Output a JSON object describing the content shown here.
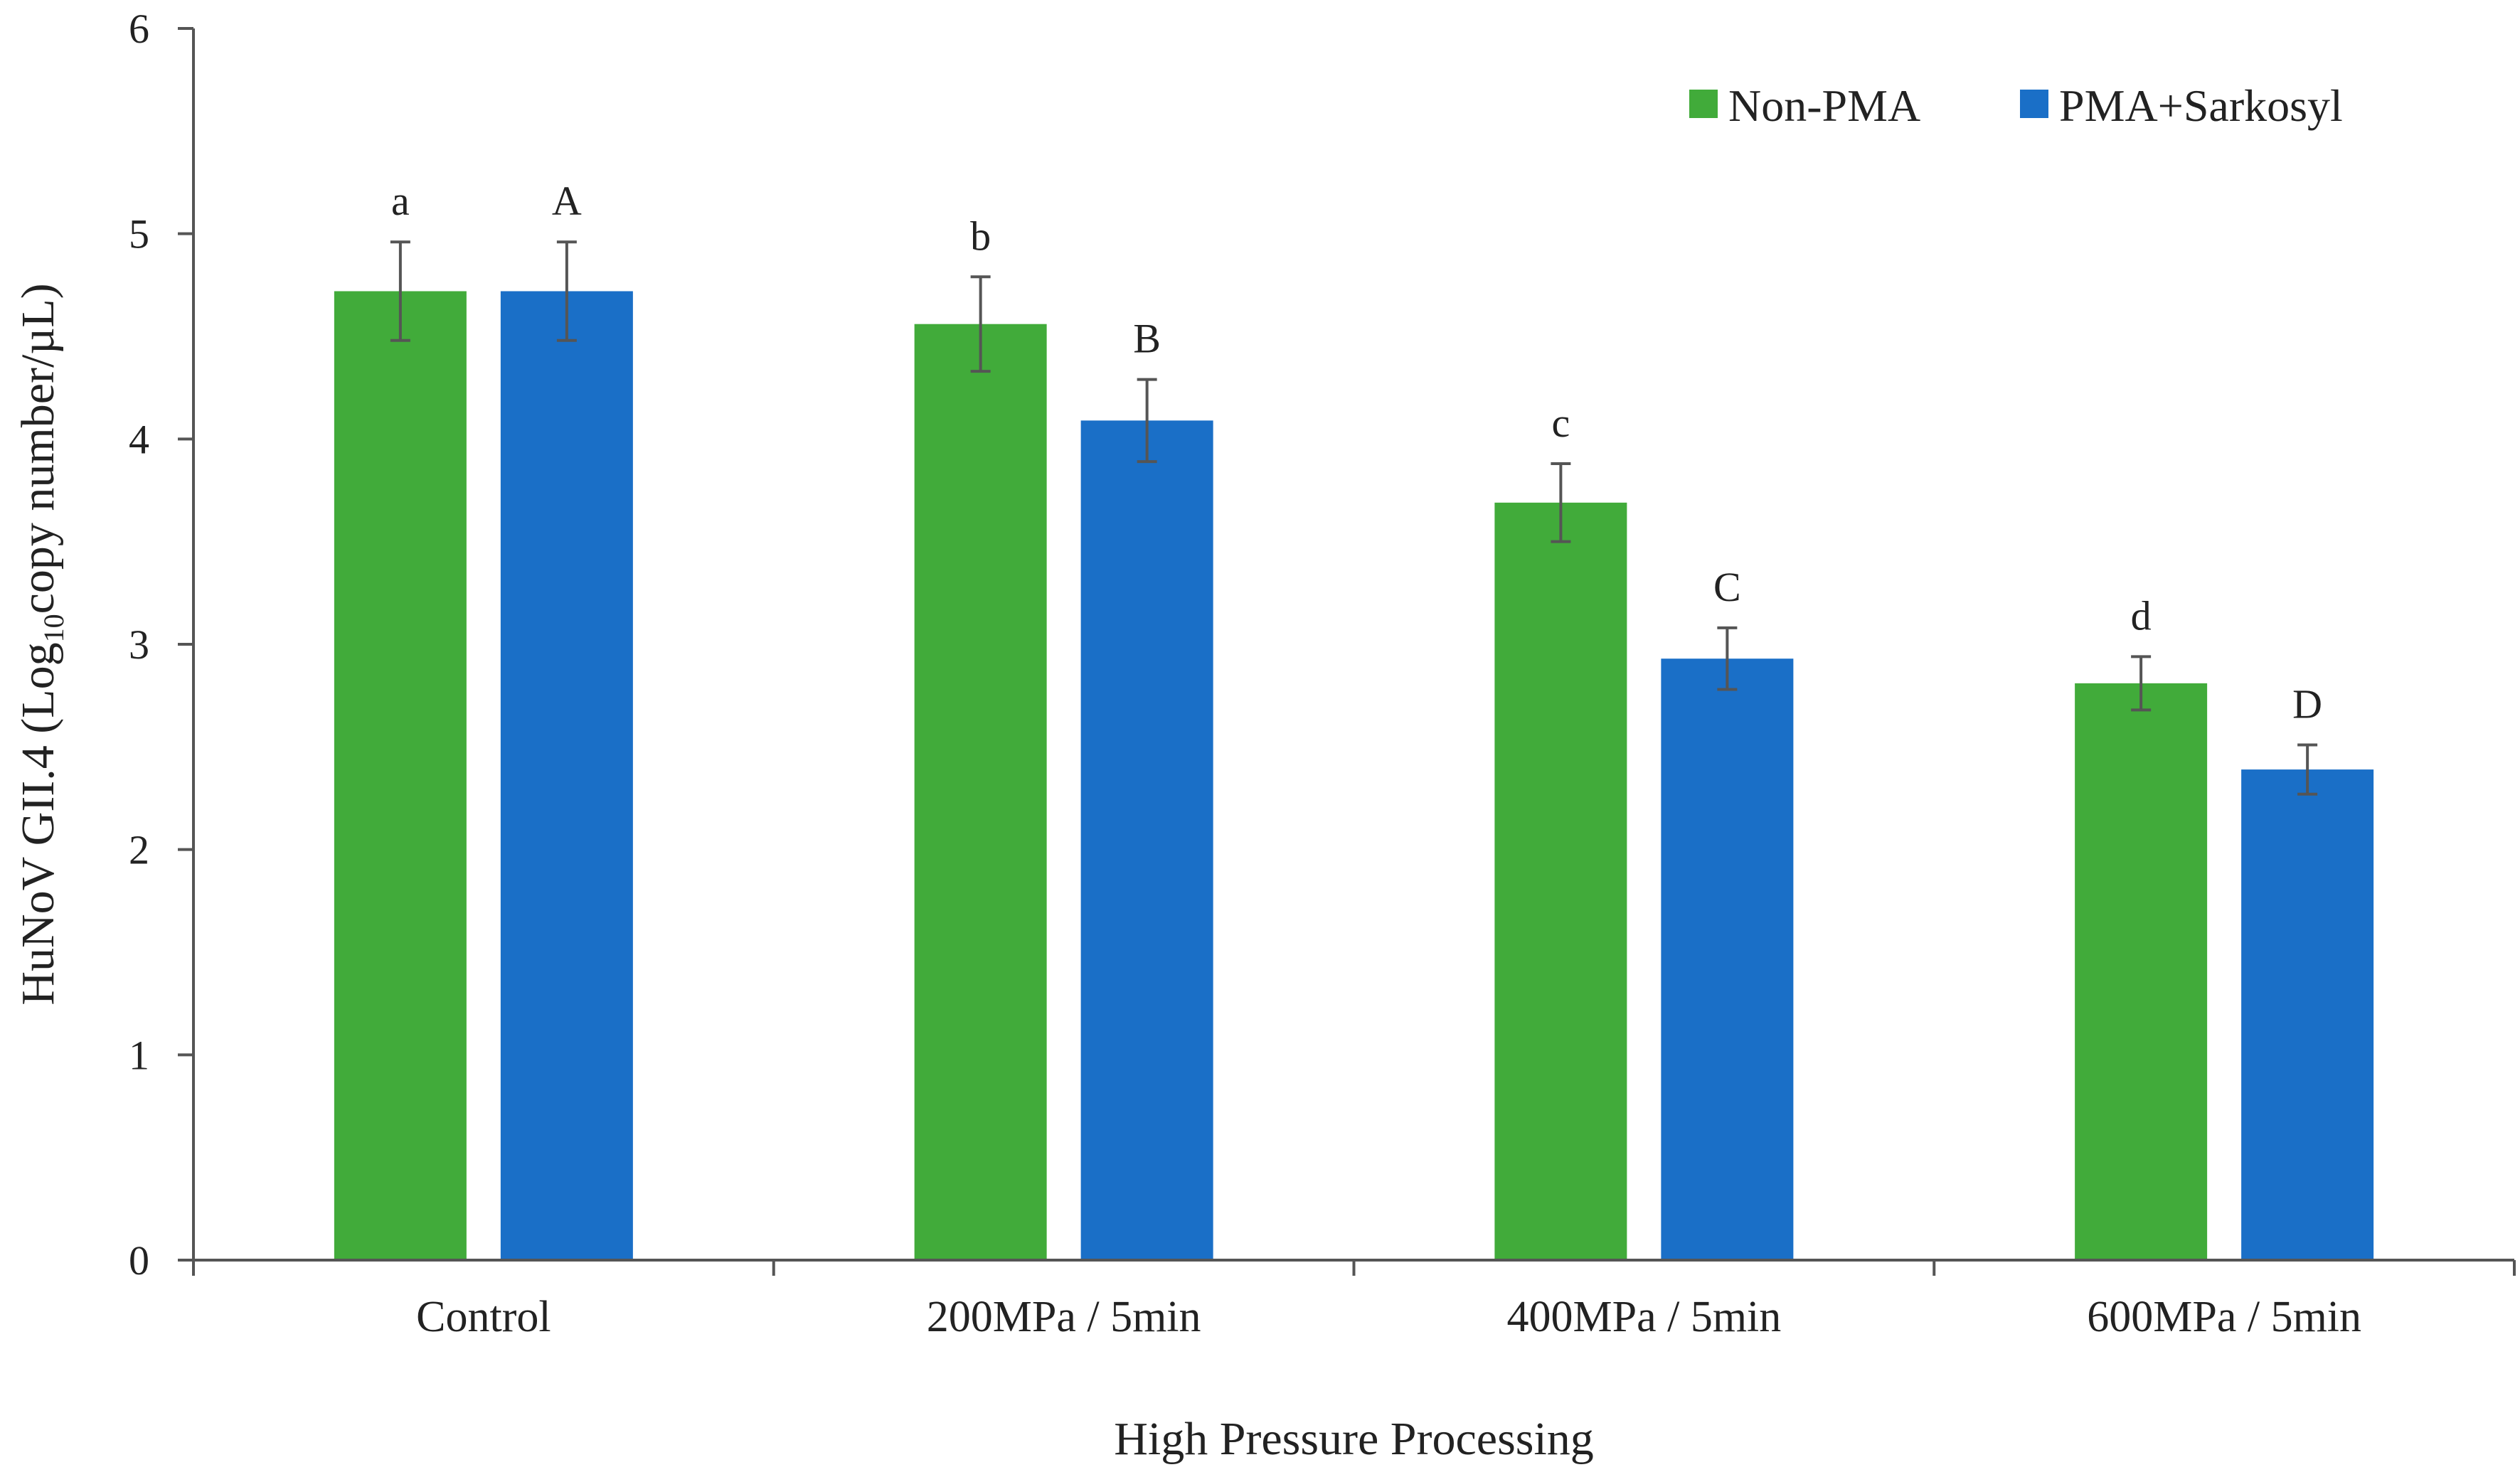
{
  "chart_data": {
    "type": "bar",
    "title": "",
    "xlabel": "High Pressure Processing",
    "ylabel_main": "HuNoV GII.4 (Log",
    "ylabel_sub": "10",
    "ylabel_tail": "copy number/µL)",
    "ylim": [
      0,
      6
    ],
    "yticks": [
      0,
      1,
      2,
      3,
      4,
      5,
      6
    ],
    "grid": false,
    "legend_position": "top-right",
    "categories": [
      "Control",
      "200MPa / 5min",
      "400MPa / 5min",
      "600MPa / 5min"
    ],
    "series": [
      {
        "name": "Non-PMA",
        "color": "#41ab3a",
        "values": [
          4.72,
          4.56,
          3.69,
          2.81
        ],
        "errors": [
          0.24,
          0.23,
          0.19,
          0.13
        ],
        "letters": [
          "a",
          "b",
          "c",
          "d"
        ]
      },
      {
        "name": "PMA+Sarkosyl",
        "color": "#1a6fc7",
        "values": [
          4.72,
          4.09,
          2.93,
          2.39
        ],
        "errors": [
          0.24,
          0.2,
          0.15,
          0.12
        ],
        "letters": [
          "A",
          "B",
          "C",
          "D"
        ]
      }
    ]
  }
}
